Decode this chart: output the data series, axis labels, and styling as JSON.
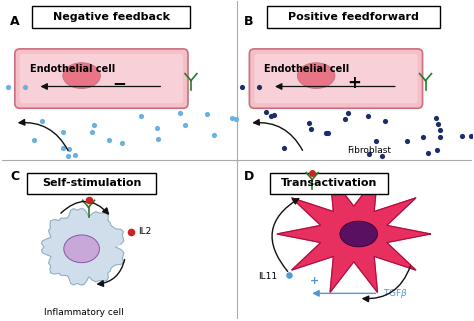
{
  "bg_color": "#ffffff",
  "divider_color": "#aaaaaa",
  "panel_labels": [
    "A",
    "B",
    "C",
    "D"
  ],
  "panel_titles": [
    "Negative feedback",
    "Positive feedforward",
    "Self-stimulation",
    "Transactivation"
  ],
  "title_box_color": "#ffffff",
  "title_box_edge": "#000000",
  "cell_fill": "#f5bfc8",
  "cell_fill_inner": "#f8d0d8",
  "nucleus_fill": "#e87585",
  "cell_edge": "#c87080",
  "dot_color_A": "#6ab0e0",
  "dot_color_B": "#1a2f6a",
  "arrow_color": "#111111",
  "il2_dot_color": "#cc2222",
  "tgfb_arrow_color": "#5599cc",
  "tgfb_text_color": "#5599cc",
  "immune_cell_fill": "#c8d8e8",
  "immune_cell_edge": "#88aabb",
  "immune_nucleus_fill": "#c8a8d8",
  "immune_nucleus_edge": "#8855aa",
  "fibroblast_fill": "#e83060",
  "fibroblast_nucleus": "#5a1060",
  "receptor_color": "#2a7a2a",
  "label_fontsize": 9,
  "title_fontsize": 8,
  "cell_label_fontsize": 7,
  "annotation_fontsize": 6.5
}
